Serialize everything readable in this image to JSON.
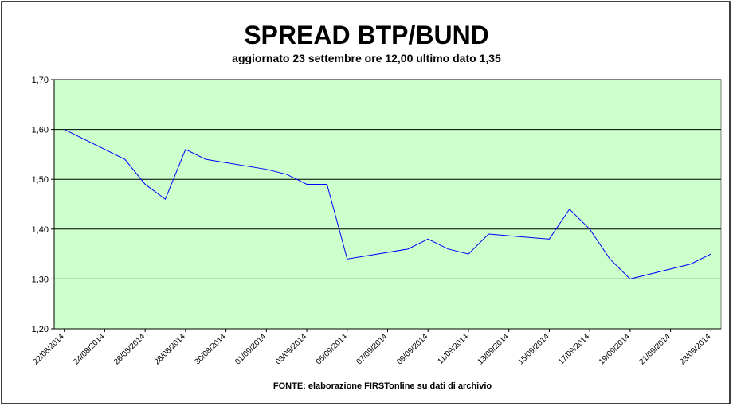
{
  "chart_data": {
    "type": "line",
    "title": "SPREAD BTP/BUND",
    "subtitle": "aggiornato 23 settembre ore 12,00 ultimo dato 1,35",
    "source": "FONTE: elaborazione FIRSTonline su dati di archivio",
    "x": [
      "22/08/2014",
      "25/08/2014",
      "26/08/2014",
      "27/08/2014",
      "28/08/2014",
      "29/08/2014",
      "01/09/2014",
      "02/09/2014",
      "03/09/2014",
      "04/09/2014",
      "05/09/2014",
      "08/09/2014",
      "09/09/2014",
      "10/09/2014",
      "11/09/2014",
      "12/09/2014",
      "15/09/2014",
      "16/09/2014",
      "17/09/2014",
      "18/09/2014",
      "19/09/2014",
      "22/09/2014",
      "23/09/2014"
    ],
    "values": [
      1.6,
      1.54,
      1.49,
      1.46,
      1.56,
      1.54,
      1.52,
      1.51,
      1.49,
      1.49,
      1.34,
      1.36,
      1.38,
      1.36,
      1.35,
      1.39,
      1.38,
      1.44,
      1.4,
      1.34,
      1.3,
      1.33,
      1.35
    ],
    "color": "#0000ff",
    "xticks": [
      "22/08/2014",
      "24/08/2014",
      "26/08/2014",
      "28/08/2014",
      "30/08/2014",
      "01/09/2014",
      "03/09/2014",
      "05/09/2014",
      "07/09/2014",
      "09/09/2014",
      "11/09/2014",
      "13/09/2014",
      "15/09/2014",
      "17/09/2014",
      "19/09/2014",
      "21/09/2014",
      "23/09/2014"
    ],
    "ylim": [
      1.2,
      1.7
    ],
    "yticks": [
      {
        "value": 1.2,
        "label": "1,20"
      },
      {
        "value": 1.3,
        "label": "1,30"
      },
      {
        "value": 1.4,
        "label": "1,40"
      },
      {
        "value": 1.5,
        "label": "1,50"
      },
      {
        "value": 1.6,
        "label": "1,60"
      },
      {
        "value": 1.7,
        "label": "1,70"
      }
    ],
    "grid": true,
    "plot_background": "#ccffcc"
  }
}
